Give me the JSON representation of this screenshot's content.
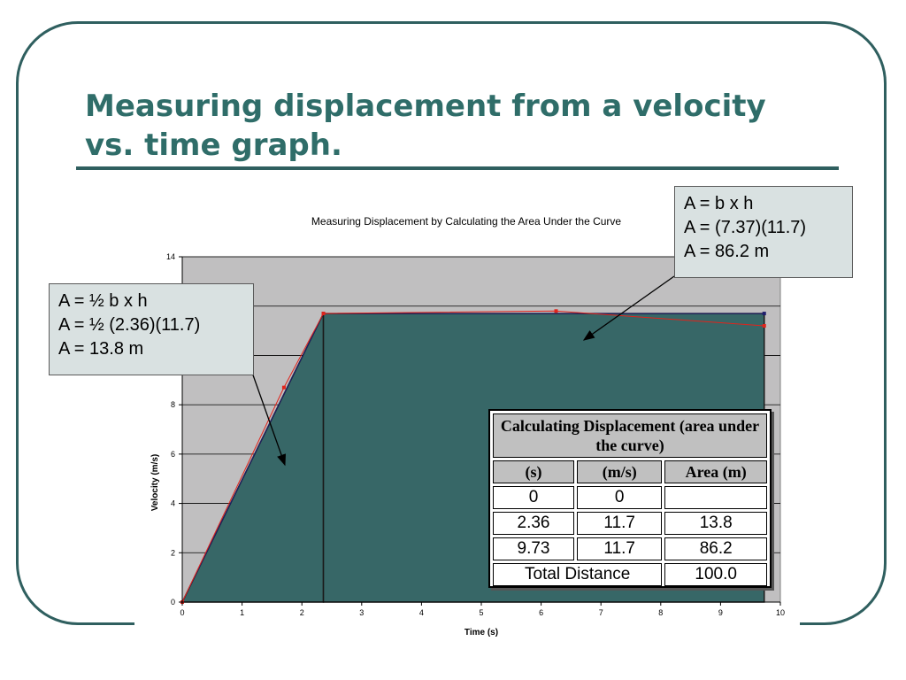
{
  "slide": {
    "title_line1": "Measuring displacement from a velocity",
    "title_line2": "vs. time graph."
  },
  "callouts": {
    "triangle": [
      "A = ½ b x h",
      "A = ½ (2.36)(11.7)",
      "A = 13.8 m"
    ],
    "rectangle": [
      "A = b x h",
      "A = (7.37)(11.7)",
      "A = 86.2 m"
    ]
  },
  "table": {
    "caption": "Calculating Displacement (area under the curve)",
    "headers": [
      "(s)",
      "(m/s)",
      "Area (m)"
    ],
    "rows": [
      [
        "0",
        "0",
        ""
      ],
      [
        "2.36",
        "11.7",
        "13.8"
      ],
      [
        "9.73",
        "11.7",
        "86.2"
      ]
    ],
    "total_label": "Total Distance",
    "total_value": "100.0"
  },
  "colors": {
    "fill": "#376767",
    "plot_background": "#c0bfc0",
    "measured_line": "#e0241c",
    "frame": "#2f5f5f",
    "title": "#2f6d69"
  },
  "chart_data": {
    "type": "area",
    "title": "Measuring Displacement by Calculating the Area Under the Curve",
    "xlabel": "Time (s)",
    "ylabel": "Velocity (m/s)",
    "xlim": [
      0,
      10
    ],
    "ylim": [
      0,
      14
    ],
    "xticks": [
      "0",
      "1",
      "2",
      "3",
      "4",
      "5",
      "6",
      "7",
      "8",
      "9",
      "10"
    ],
    "yticks": [
      "0",
      "2",
      "4",
      "6",
      "8",
      "10",
      "12",
      "14"
    ],
    "grid": true,
    "series": [
      {
        "name": "",
        "role": "area-under-curve",
        "x": [
          0,
          2.36,
          9.73
        ],
        "y": [
          0,
          11.7,
          11.7
        ]
      },
      {
        "name": "",
        "role": "measured",
        "x": [
          0,
          1.7,
          2.36,
          6.25,
          9.73
        ],
        "y": [
          0,
          8.7,
          11.7,
          11.8,
          11.2
        ]
      }
    ],
    "regions": [
      {
        "shape": "triangle",
        "x_from": 0,
        "x_to": 2.36,
        "height": 11.7
      },
      {
        "shape": "rectangle",
        "x_from": 2.36,
        "x_to": 9.73,
        "height": 11.7
      }
    ]
  }
}
